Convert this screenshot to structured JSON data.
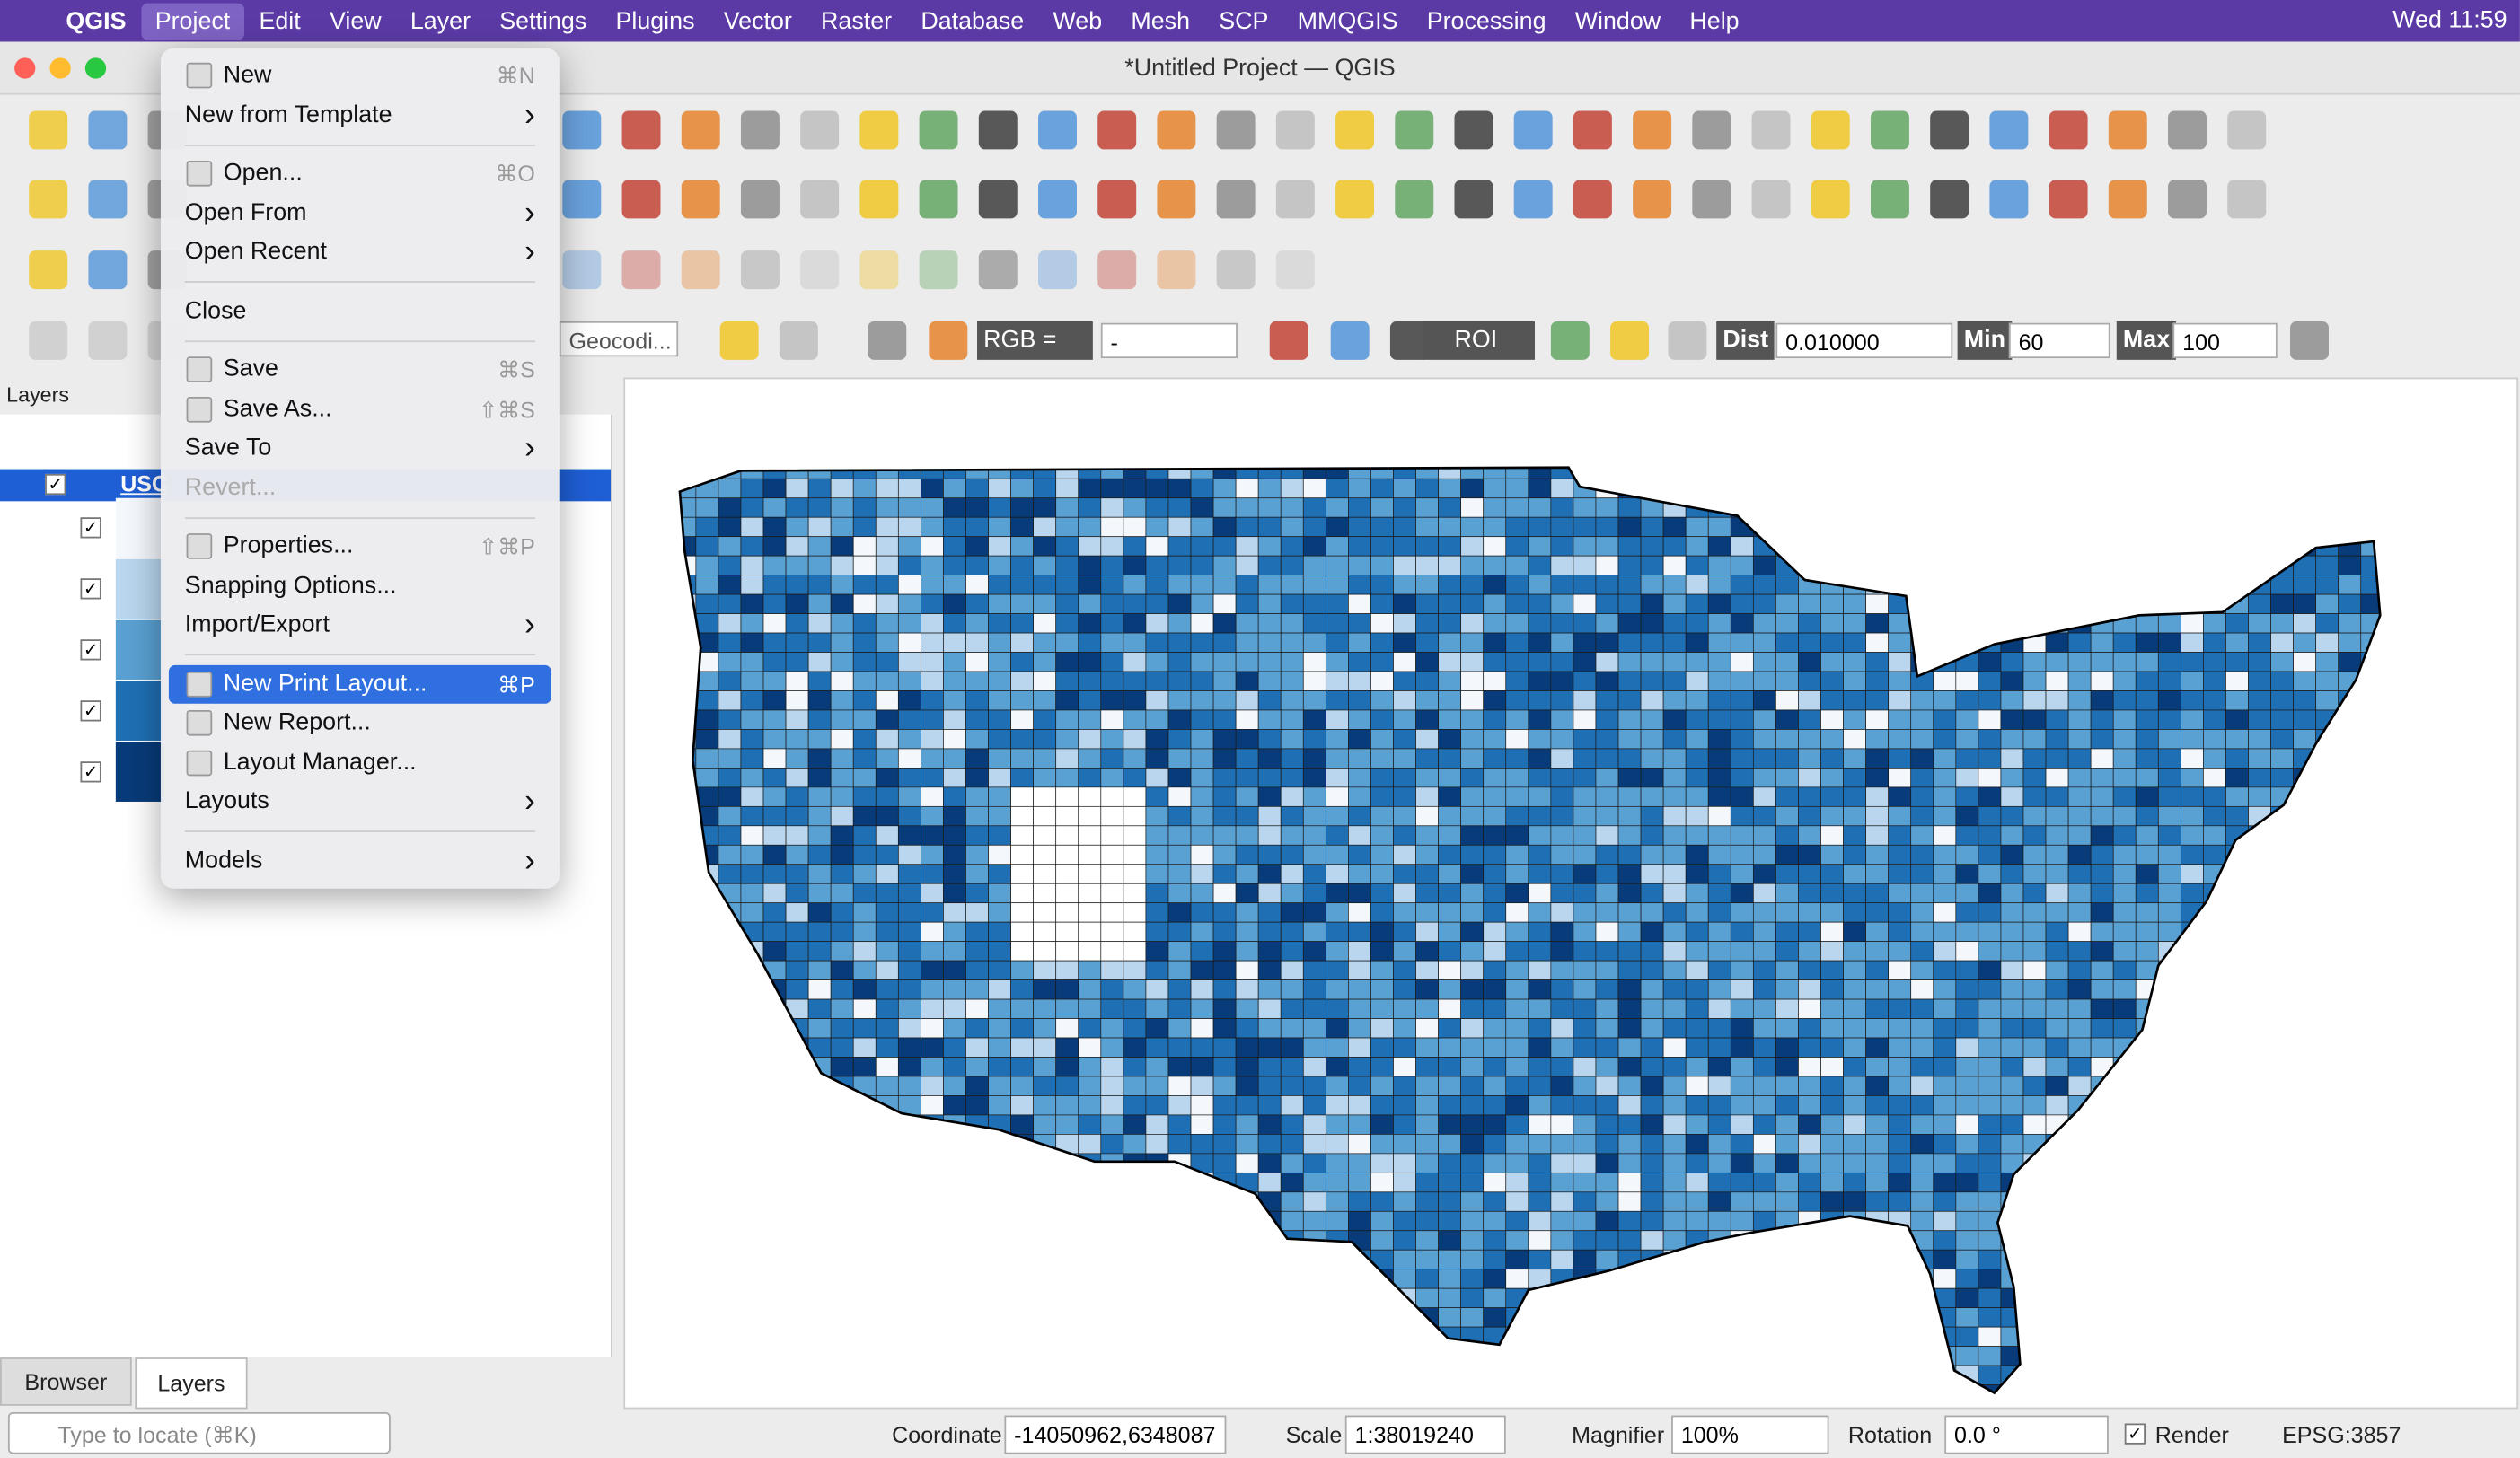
{
  "menubar": {
    "items": [
      "QGIS",
      "Project",
      "Edit",
      "View",
      "Layer",
      "Settings",
      "Plugins",
      "Vector",
      "Raster",
      "Database",
      "Web",
      "Mesh",
      "SCP",
      "MMQGIS",
      "Processing",
      "Window",
      "Help"
    ],
    "clock": "Wed 11:59"
  },
  "window": {
    "title": "*Untitled Project — QGIS"
  },
  "menu": {
    "sections": [
      [
        {
          "label": "New",
          "shortcut": "⌘N",
          "icon": true
        },
        {
          "label": "New from Template",
          "submenu": true
        }
      ],
      [
        {
          "label": "Open...",
          "shortcut": "⌘O",
          "icon": true
        },
        {
          "label": "Open From",
          "submenu": true
        },
        {
          "label": "Open Recent",
          "submenu": true
        }
      ],
      [
        {
          "label": "Close"
        }
      ],
      [
        {
          "label": "Save",
          "shortcut": "⌘S",
          "icon": true
        },
        {
          "label": "Save As...",
          "shortcut": "⇧⌘S",
          "icon": true
        },
        {
          "label": "Save To",
          "submenu": true
        },
        {
          "label": "Revert...",
          "disabled": true
        }
      ],
      [
        {
          "label": "Properties...",
          "shortcut": "⇧⌘P",
          "icon": true
        },
        {
          "label": "Snapping Options..."
        },
        {
          "label": "Import/Export",
          "submenu": true
        }
      ],
      [
        {
          "label": "New Print Layout...",
          "shortcut": "⌘P",
          "icon": true,
          "highlighted": true
        },
        {
          "label": "New Report...",
          "icon": true
        },
        {
          "label": "Layout Manager...",
          "icon": true
        },
        {
          "label": "Layouts",
          "submenu": true
        }
      ],
      [
        {
          "label": "Models",
          "submenu": true
        }
      ]
    ]
  },
  "toolbar": {
    "geocoder": "Geocodi...",
    "rgb": "RGB =",
    "rgb_value": "-",
    "roi": "ROI",
    "dist_label": "Dist",
    "dist": "0.010000",
    "min_label": "Min",
    "min": "60",
    "max_label": "Max",
    "max": "100"
  },
  "layers_panel": {
    "title": "Layers",
    "layer": "USC",
    "tabs": [
      "Browser",
      "Layers"
    ],
    "search": "Type to locate (⌘K)"
  },
  "status": {
    "coordinate_label": "Coordinate",
    "coordinate": "-14050962,6348087",
    "scale_label": "Scale",
    "scale": "1:38019240",
    "magnifier_label": "Magnifier",
    "magnifier": "100%",
    "rotation_label": "Rotation",
    "rotation": "0.0 °",
    "render": "Render",
    "crs": "EPSG:3857"
  }
}
